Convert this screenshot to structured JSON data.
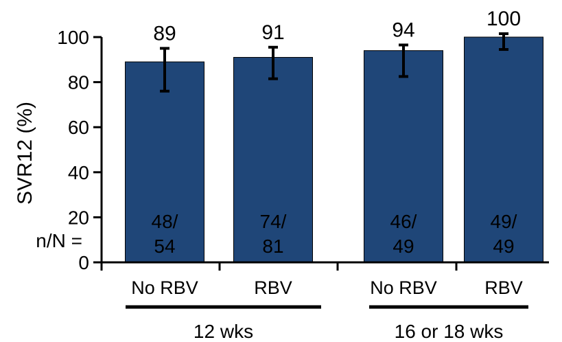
{
  "chart_data": {
    "type": "bar",
    "categories": [
      "No RBV",
      "RBV",
      "No RBV",
      "RBV"
    ],
    "values": [
      89,
      91,
      94,
      100
    ],
    "value_labels": [
      "89",
      "91",
      "94",
      "100"
    ],
    "error_bars": [
      {
        "low": 76,
        "high": 95
      },
      {
        "low": 81.5,
        "high": 95.5
      },
      {
        "low": 82.5,
        "high": 96.5
      },
      {
        "low": 94.5,
        "high": 101.5
      }
    ],
    "n_of_N": [
      {
        "n": "48/",
        "N": "54"
      },
      {
        "n": "74/",
        "N": "81"
      },
      {
        "n": "46/",
        "N": "49"
      },
      {
        "n": "49/",
        "N": "49"
      }
    ],
    "groups": [
      {
        "label": "12 wks",
        "categories": [
          0,
          1
        ]
      },
      {
        "label": "16 or 18 wks",
        "categories": [
          2,
          3
        ]
      }
    ],
    "ylabel": "SVR12 (%)",
    "nN_label": "n/N =",
    "ylim": [
      0,
      100
    ],
    "yticks": [
      "0",
      "20",
      "40",
      "60",
      "80",
      "100"
    ],
    "bar_color": "#1F4678",
    "grid": false
  }
}
